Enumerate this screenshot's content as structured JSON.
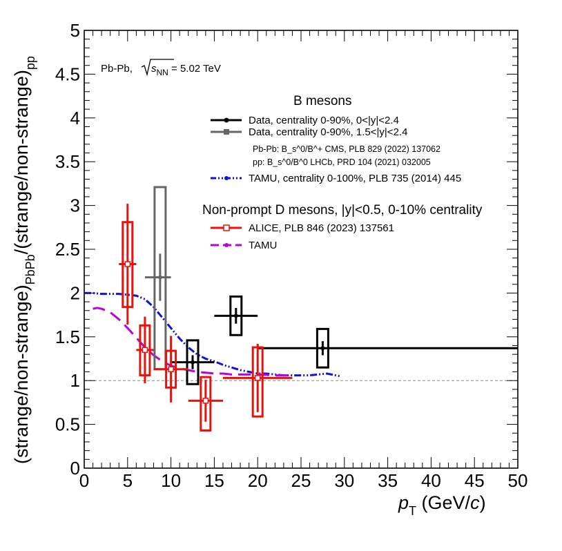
{
  "chart_data": {
    "type": "scatter",
    "xlabel": "p_T (GeV/c)",
    "xlabel_main": "p",
    "xlabel_sub": "T",
    "xlabel_unit_pre": " (GeV/",
    "xlabel_unit_c": "c",
    "xlabel_unit_post": ")",
    "ylabel": "(strange/non-strange)_PbPb/(strange/non-strange)_pp",
    "ylabel_part1": "(strange/non-strange)",
    "ylabel_sub1": "PbPb",
    "ylabel_part2": "/(strange/non-strange)",
    "ylabel_sub2": "pp",
    "xlim": [
      0,
      50
    ],
    "ylim": [
      0,
      5
    ],
    "xticks": [
      0,
      5,
      10,
      15,
      20,
      25,
      30,
      35,
      40,
      45,
      50
    ],
    "yticks": [
      0,
      0.5,
      1,
      1.5,
      2,
      2.5,
      3,
      3.5,
      4,
      4.5,
      5
    ],
    "yticks_labels": [
      "0",
      "0.5",
      "1",
      "1.5",
      "2",
      "2.5",
      "3",
      "3.5",
      "4",
      "4.5",
      "5"
    ],
    "reference_line": 1,
    "system_label": {
      "prefix": "Pb-Pb, ",
      "sqrt_arg": "s",
      "sqrt_sub": "NN",
      "suffix": " = 5.02 TeV"
    },
    "legend": {
      "b_header": "B mesons",
      "b_data1": "Data, centrality 0-90%, 0<|y|<2.4",
      "b_data2": "Data, centrality 0-90%, 1.5<|y|<2.4",
      "ref_line1": "Pb-Pb: B_s^0/B^+ CMS, PLB 829 (2022) 137062",
      "ref_line2": "pp: B_s^0/B^0 LHCb, PRD 104 (2021) 032005",
      "tamu_b": "TAMU, centrality 0-100%, PLB 735 (2014) 445",
      "d_header": "Non-prompt D mesons, |y|<0.5, 0-10% centrality",
      "alice": "ALICE, PLB 846 (2023) 137561",
      "tamu_d": "TAMU"
    },
    "series": [
      {
        "name": "B data 0-90% 0<|y|<2.4",
        "color": "#000000",
        "points": [
          {
            "x": 12.5,
            "y": 1.21,
            "xlo": 10,
            "xhi": 15,
            "stat": 0.08,
            "syslo": 0.96,
            "syshi": 1.46
          },
          {
            "x": 17.5,
            "y": 1.74,
            "xlo": 15,
            "xhi": 20,
            "stat": 0.09,
            "syslo": 1.52,
            "syshi": 1.96
          },
          {
            "x": 27.5,
            "y": 1.37,
            "xlo": 20,
            "xhi": 50,
            "stat": 0.08,
            "syslo": 1.15,
            "syshi": 1.59
          }
        ]
      },
      {
        "name": "B data 0-90% 1.5<|y|<2.4",
        "color": "#666666",
        "points": [
          {
            "x": 8.75,
            "y": 2.18,
            "xlo": 7,
            "xhi": 10,
            "stat": 0.27,
            "syslo": 1.13,
            "syshi": 3.21
          }
        ]
      },
      {
        "name": "ALICE non-prompt D",
        "color": "#e8120c",
        "points": [
          {
            "x": 5,
            "y": 2.33,
            "xlo": 4,
            "xhi": 6,
            "stat": 0.69,
            "syslo": 1.84,
            "syshi": 2.81
          },
          {
            "x": 7,
            "y": 1.35,
            "xlo": 6,
            "xhi": 8,
            "stat": 0.38,
            "syslo": 1.06,
            "syshi": 1.63
          },
          {
            "x": 10,
            "y": 1.13,
            "xlo": 8,
            "xhi": 12,
            "stat": 0.38,
            "syslo": 0.92,
            "syshi": 1.34
          },
          {
            "x": 14,
            "y": 0.77,
            "xlo": 12,
            "xhi": 16,
            "stat": 0.24,
            "syslo": 0.43,
            "syshi": 1.04
          },
          {
            "x": 20,
            "y": 1.03,
            "xlo": 16,
            "xhi": 24,
            "stat": 0.39,
            "syslo": 0.59,
            "syshi": 1.38
          }
        ]
      }
    ],
    "models": [
      {
        "name": "TAMU B",
        "color": "#1010dd",
        "style": "dash-dot-dot",
        "x": [
          0,
          1,
          2,
          3,
          4,
          5,
          6,
          7,
          8,
          9,
          10,
          11,
          12,
          13,
          14,
          15,
          16,
          17,
          18,
          19,
          20,
          21,
          22,
          23,
          24,
          25,
          26,
          27,
          28,
          29,
          29.5
        ],
        "y": [
          2.0,
          2.0,
          1.99,
          1.99,
          1.99,
          1.98,
          1.97,
          1.93,
          1.84,
          1.72,
          1.6,
          1.48,
          1.38,
          1.3,
          1.25,
          1.22,
          1.18,
          1.15,
          1.12,
          1.1,
          1.08,
          1.08,
          1.07,
          1.06,
          1.06,
          1.06,
          1.06,
          1.07,
          1.08,
          1.06,
          1.05
        ]
      },
      {
        "name": "TAMU D",
        "color": "#bb00dd",
        "style": "dashed",
        "x": [
          1,
          1.5,
          2,
          3,
          4,
          5,
          6,
          7,
          8,
          9,
          10,
          11,
          12,
          13,
          14,
          15,
          16,
          17,
          18,
          20,
          22,
          24
        ],
        "y": [
          1.82,
          1.83,
          1.82,
          1.78,
          1.7,
          1.6,
          1.49,
          1.38,
          1.29,
          1.22,
          1.17,
          1.14,
          1.12,
          1.1,
          1.09,
          1.08,
          1.08,
          1.07,
          1.07,
          1.07,
          1.06,
          1.06
        ]
      }
    ]
  }
}
